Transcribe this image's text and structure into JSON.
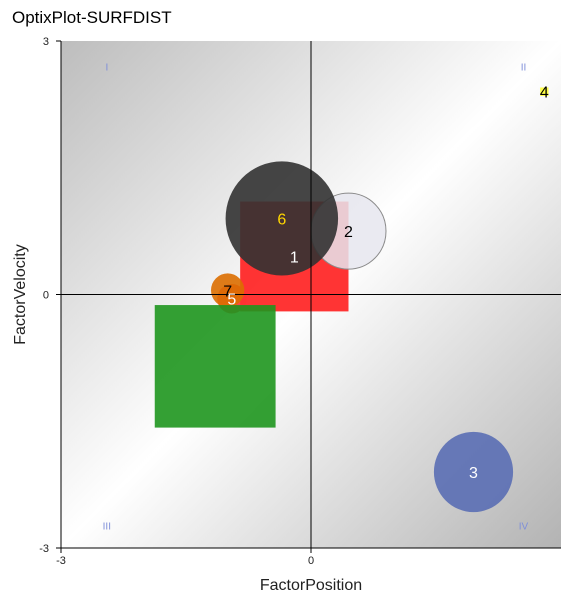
{
  "chart_data": {
    "type": "scatter",
    "title": "OptixPlot-SURFDIST",
    "xlabel": "FactorPosition",
    "ylabel": "FactorVelocity",
    "xlim": [
      -3,
      3
    ],
    "ylim": [
      -3,
      3
    ],
    "x_ticks": [
      "-3",
      "0"
    ],
    "y_ticks": [
      "3",
      "0",
      "-3"
    ],
    "quadrant_labels": [
      "I",
      "II",
      "III",
      "IV"
    ],
    "grid": false,
    "background": "diagonal gradient, light grey to white to grey",
    "points": [
      {
        "label": "1",
        "x": -0.2,
        "y": 0.45,
        "shape": "square",
        "size": 1.3,
        "color": "#ff1e1e"
      },
      {
        "label": "2",
        "x": 0.45,
        "y": 0.75,
        "shape": "circle",
        "size": 0.9,
        "color": "#e6e6ee"
      },
      {
        "label": "3",
        "x": 1.95,
        "y": -2.1,
        "shape": "circle",
        "size": 0.95,
        "color": "#5a6eb4"
      },
      {
        "label": "4",
        "x": 2.8,
        "y": 2.4,
        "shape": "square",
        "size": 0.1,
        "color": "#ffff32"
      },
      {
        "label": "5",
        "x": -0.95,
        "y": -0.05,
        "shape": "circle",
        "size": 0.35,
        "color": "#ff3232"
      },
      {
        "label": "6",
        "x": -0.35,
        "y": 0.9,
        "shape": "circle",
        "size": 1.35,
        "color": "#323232"
      },
      {
        "label": "7",
        "x": -1.0,
        "y": 0.05,
        "shape": "circle",
        "size": 0.4,
        "color": "#dc6e00"
      },
      {
        "label": "",
        "x": -1.15,
        "y": -0.85,
        "shape": "square",
        "size": 1.45,
        "color": "#1e961e"
      }
    ],
    "label_colors": {
      "on_dark": "#ffffff",
      "on_light": "#000000",
      "highlight": "#ffd700"
    },
    "axis_color": "#000000",
    "quadrant_label_color": "#7f8fd9"
  }
}
